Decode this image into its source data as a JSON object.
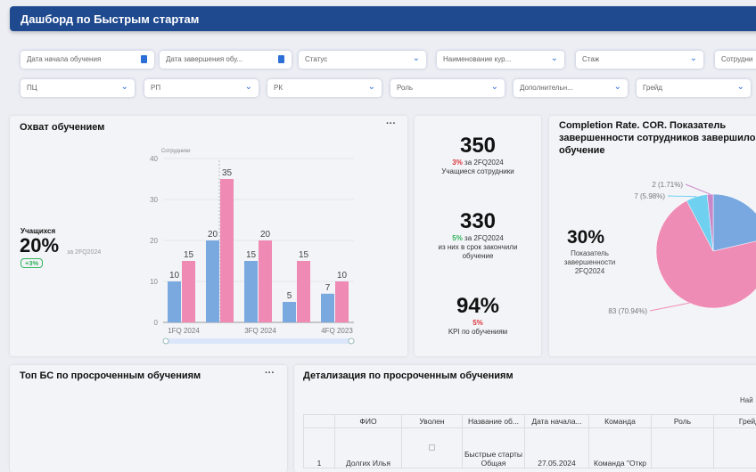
{
  "header": {
    "title": "Дашборд по Быстрым стартам"
  },
  "filters": {
    "row1": [
      "Дата начала обучения",
      "Дата завершения обу...",
      "Статус",
      "Наименование кур...",
      "Стаж",
      "Сотрудни"
    ],
    "row2": [
      "ПЦ",
      "РП",
      "РК",
      "Роль",
      "Дополнительн...",
      "Грейд"
    ]
  },
  "coverage": {
    "title": "Охват обучением",
    "menu": "···",
    "label": "Учащихся",
    "value": "20%",
    "period": "за 2FQ2024",
    "delta": "+3%"
  },
  "chart_data": {
    "type": "bar",
    "ylabel": "Сотрудники",
    "ylim": [
      0,
      40
    ],
    "yticks": [
      "0",
      "10",
      "20",
      "30",
      "40"
    ],
    "categories": [
      "1FQ 2024",
      "",
      "3FQ 2024",
      "",
      "4FQ 2023"
    ],
    "series": [
      {
        "name": "blue",
        "color": "#7aa9e0",
        "values": [
          10,
          20,
          15,
          5,
          7
        ]
      },
      {
        "name": "pink",
        "color": "#ee8ab4",
        "values": [
          15,
          35,
          20,
          15,
          10
        ]
      }
    ]
  },
  "kpis": [
    {
      "value": "350",
      "delta": "3%",
      "delta_color": "red",
      "period": "за 2FQ2024",
      "label": "Учащиеся сотрудники"
    },
    {
      "value": "330",
      "delta": "5%",
      "delta_color": "green",
      "period": "за 2FQ2024",
      "label": "из них в срок закончили обучение"
    },
    {
      "value": "94%",
      "delta": "5%",
      "delta_color": "red",
      "period": "",
      "label": "KPI по обучениям"
    }
  ],
  "completion": {
    "title": "Completion Rate. COR. Показатель завершенности сотрудников завершило обучение",
    "value": "30%",
    "label": "Показатель завершенности 2FQ2024",
    "pie": [
      {
        "value": 25,
        "color": "#79a8e0"
      },
      {
        "value": 83,
        "label": "83 (70.94%)",
        "color": "#ef8cb6"
      },
      {
        "value": 7,
        "label": "7 (5.98%)",
        "color": "#6fd0f0"
      },
      {
        "value": 2,
        "label": "2 (1.71%)",
        "color": "#c987c9"
      }
    ]
  },
  "top_bs": {
    "title": "Топ БС по просроченным обучениям",
    "menu": "···"
  },
  "detail": {
    "title": "Детализация по просроченным обучениям",
    "search": "Най",
    "columns": [
      "",
      "ФИО",
      "Уволен",
      "Название об...",
      "Дата начала...",
      "Команда",
      "Роль",
      "Грейд"
    ],
    "rows": [
      [
        "1",
        "Долгих Илья",
        "",
        "Быстрые старты Общая",
        "27.05.2024",
        "Команда \"Откр",
        "",
        ""
      ]
    ]
  }
}
